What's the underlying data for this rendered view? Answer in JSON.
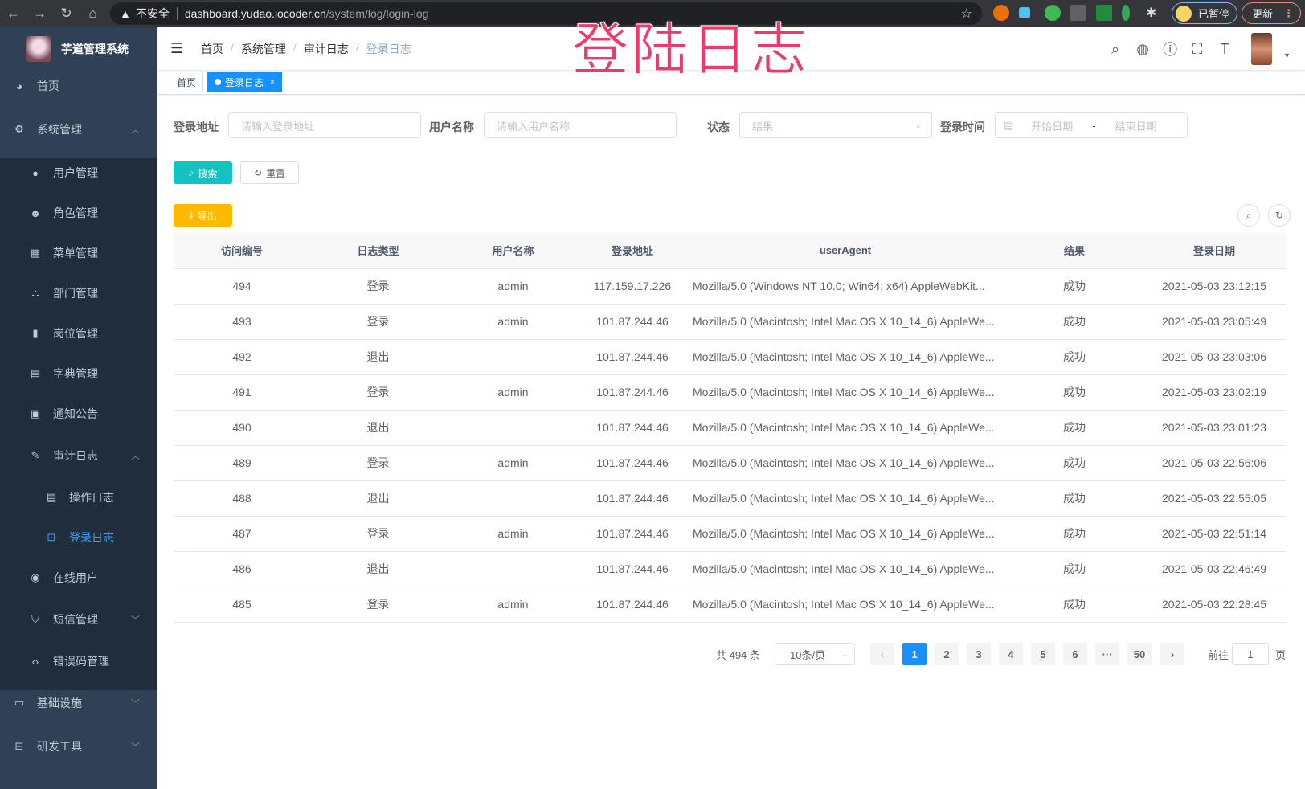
{
  "browser": {
    "warning": "不安全",
    "url_host": "dashboard.yudao.iocoder.cn",
    "url_path": "/system/log/login-log",
    "paused_label": "已暂停",
    "update_label": "更新"
  },
  "overlay_title": "登陆日志",
  "sidebar": {
    "app_title": "芋道管理系统",
    "items": [
      {
        "label": "首页",
        "icon": "dashboard-icon"
      },
      {
        "label": "系统管理",
        "icon": "gear-icon",
        "expanded": true
      },
      {
        "label": "用户管理",
        "icon": "user-icon"
      },
      {
        "label": "角色管理",
        "icon": "peoples-icon"
      },
      {
        "label": "菜单管理",
        "icon": "tree-table-icon"
      },
      {
        "label": "部门管理",
        "icon": "tree-icon"
      },
      {
        "label": "岗位管理",
        "icon": "post-icon"
      },
      {
        "label": "字典管理",
        "icon": "dict-icon"
      },
      {
        "label": "通知公告",
        "icon": "message-icon"
      },
      {
        "label": "审计日志",
        "icon": "log-icon",
        "expanded": true
      },
      {
        "label": "操作日志",
        "icon": "form-icon"
      },
      {
        "label": "登录日志",
        "icon": "logininfor-icon",
        "active": true
      },
      {
        "label": "在线用户",
        "icon": "online-icon"
      },
      {
        "label": "短信管理",
        "icon": "validCode-icon"
      },
      {
        "label": "错误码管理",
        "icon": "code-icon"
      },
      {
        "label": "基础设施",
        "icon": "monitor-icon"
      },
      {
        "label": "研发工具",
        "icon": "tool-icon"
      }
    ]
  },
  "breadcrumb": [
    "首页",
    "系统管理",
    "审计日志",
    "登录日志"
  ],
  "tags": [
    {
      "label": "首页"
    },
    {
      "label": "登录日志",
      "active": true,
      "close": "×"
    }
  ],
  "filters": {
    "address": {
      "label": "登录地址",
      "placeholder": "请输入登录地址"
    },
    "username": {
      "label": "用户名称",
      "placeholder": "请输入用户名称"
    },
    "status": {
      "label": "状态",
      "placeholder": "结果"
    },
    "time": {
      "label": "登录时间",
      "start_placeholder": "开始日期",
      "separator": "-",
      "end_placeholder": "结束日期"
    }
  },
  "buttons": {
    "search": "搜索",
    "reset": "重置",
    "export": "导出"
  },
  "colors": {
    "primary": "#1890ff",
    "search": "#13c2c2",
    "export": "#ffba00",
    "sidebar": "#304156",
    "overlay": "#f0386b"
  },
  "table": {
    "columns": [
      "访问编号",
      "日志类型",
      "用户名称",
      "登录地址",
      "userAgent",
      "结果",
      "登录日期"
    ],
    "rows": [
      [
        "494",
        "登录",
        "admin",
        "117.159.17.226",
        "Mozilla/5.0 (Windows NT 10.0; Win64; x64) AppleWebKit...",
        "成功",
        "2021-05-03 23:12:15"
      ],
      [
        "493",
        "登录",
        "admin",
        "101.87.244.46",
        "Mozilla/5.0 (Macintosh; Intel Mac OS X 10_14_6) AppleWe...",
        "成功",
        "2021-05-03 23:05:49"
      ],
      [
        "492",
        "退出",
        "",
        "101.87.244.46",
        "Mozilla/5.0 (Macintosh; Intel Mac OS X 10_14_6) AppleWe...",
        "成功",
        "2021-05-03 23:03:06"
      ],
      [
        "491",
        "登录",
        "admin",
        "101.87.244.46",
        "Mozilla/5.0 (Macintosh; Intel Mac OS X 10_14_6) AppleWe...",
        "成功",
        "2021-05-03 23:02:19"
      ],
      [
        "490",
        "退出",
        "",
        "101.87.244.46",
        "Mozilla/5.0 (Macintosh; Intel Mac OS X 10_14_6) AppleWe...",
        "成功",
        "2021-05-03 23:01:23"
      ],
      [
        "489",
        "登录",
        "admin",
        "101.87.244.46",
        "Mozilla/5.0 (Macintosh; Intel Mac OS X 10_14_6) AppleWe...",
        "成功",
        "2021-05-03 22:56:06"
      ],
      [
        "488",
        "退出",
        "",
        "101.87.244.46",
        "Mozilla/5.0 (Macintosh; Intel Mac OS X 10_14_6) AppleWe...",
        "成功",
        "2021-05-03 22:55:05"
      ],
      [
        "487",
        "登录",
        "admin",
        "101.87.244.46",
        "Mozilla/5.0 (Macintosh; Intel Mac OS X 10_14_6) AppleWe...",
        "成功",
        "2021-05-03 22:51:14"
      ],
      [
        "486",
        "退出",
        "",
        "101.87.244.46",
        "Mozilla/5.0 (Macintosh; Intel Mac OS X 10_14_6) AppleWe...",
        "成功",
        "2021-05-03 22:46:49"
      ],
      [
        "485",
        "登录",
        "admin",
        "101.87.244.46",
        "Mozilla/5.0 (Macintosh; Intel Mac OS X 10_14_6) AppleWe...",
        "成功",
        "2021-05-03 22:28:45"
      ]
    ]
  },
  "pagination": {
    "total": "共 494 条",
    "page_size": "10条/页",
    "pages": [
      "1",
      "2",
      "3",
      "4",
      "5",
      "6",
      "···",
      "50"
    ],
    "current": "1",
    "prev": "‹",
    "next": "›",
    "goto_label": "前往",
    "goto_value": "1",
    "goto_suffix": "页"
  }
}
